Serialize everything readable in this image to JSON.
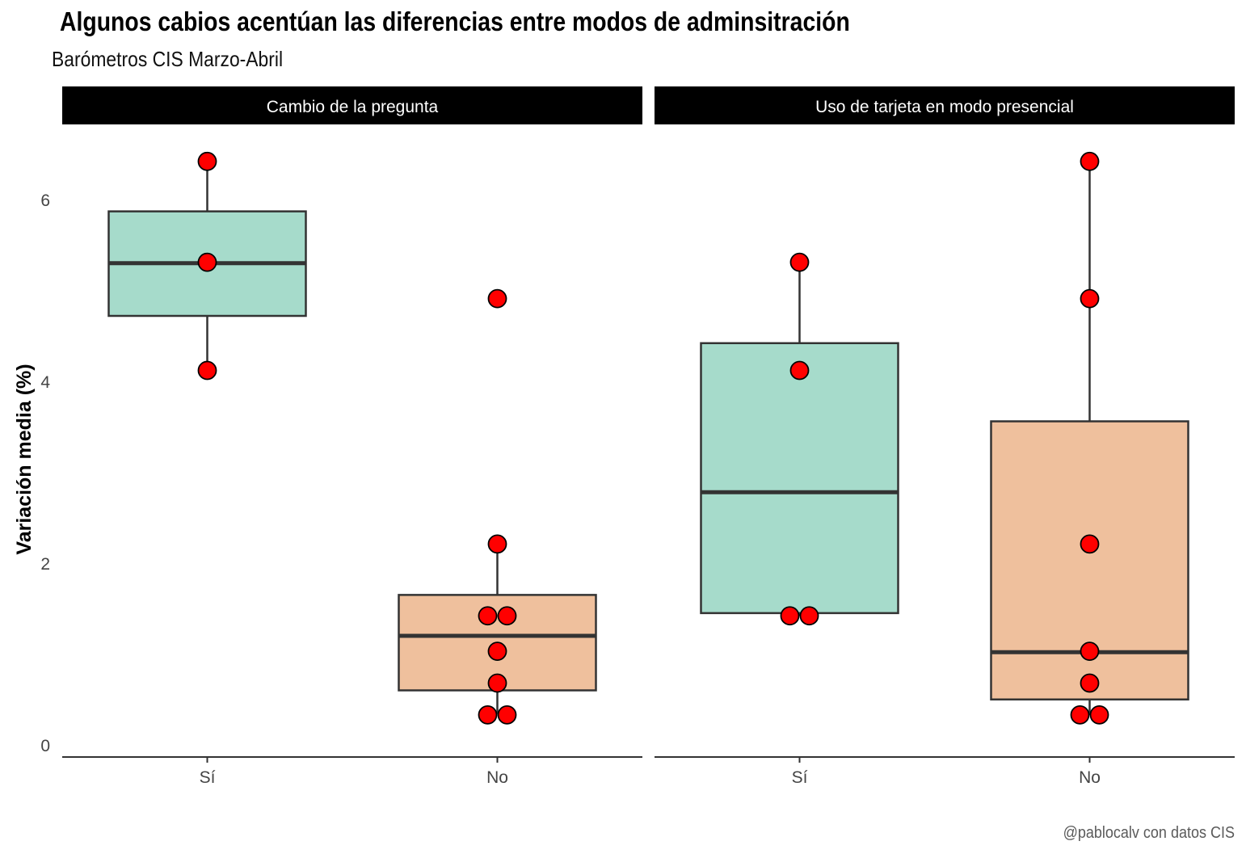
{
  "title": "Algunos cabios acentúan las diferencias entre modos de adminsitración",
  "subtitle": "Barómetros CIS Marzo-Abril",
  "caption": "@pablocalv con datos CIS",
  "colors": {
    "si_fill": "#a6dbcb",
    "no_fill": "#efc09d",
    "point": "#ff0000",
    "strip": "#000000",
    "box_line": "#333333"
  },
  "chart_data": {
    "type": "box",
    "ylabel": "Variación media (%)",
    "xlabel": "",
    "ylim": [
      0,
      6.6
    ],
    "yticks": [
      0,
      2,
      4,
      6
    ],
    "categories": [
      "Sí",
      "No"
    ],
    "grid": false,
    "panels": [
      {
        "name": "Cambio de la pregunta",
        "groups": [
          {
            "category": "Sí",
            "q1": 4.72,
            "median": 5.3,
            "q3": 5.87,
            "whisker_low": 4.12,
            "whisker_high": 6.42,
            "points": [
              {
                "y": 6.42,
                "dx": 0
              },
              {
                "y": 5.31,
                "dx": 0
              },
              {
                "y": 4.12,
                "dx": 0
              }
            ]
          },
          {
            "category": "No",
            "q1": 0.6,
            "median": 1.2,
            "q3": 1.65,
            "whisker_low": 0.34,
            "whisker_high": 2.21,
            "points": [
              {
                "y": 4.91,
                "dx": 0
              },
              {
                "y": 2.21,
                "dx": 0
              },
              {
                "y": 1.42,
                "dx": -0.5
              },
              {
                "y": 1.42,
                "dx": 0.5
              },
              {
                "y": 1.03,
                "dx": 0
              },
              {
                "y": 0.68,
                "dx": 0
              },
              {
                "y": 0.33,
                "dx": -0.5
              },
              {
                "y": 0.33,
                "dx": 0.5
              }
            ]
          }
        ]
      },
      {
        "name": "Uso de tarjeta en modo presencial",
        "groups": [
          {
            "category": "Sí",
            "q1": 1.45,
            "median": 2.78,
            "q3": 4.42,
            "whisker_low": 1.42,
            "whisker_high": 5.31,
            "points": [
              {
                "y": 5.31,
                "dx": 0
              },
              {
                "y": 4.12,
                "dx": 0
              },
              {
                "y": 1.42,
                "dx": -0.5
              },
              {
                "y": 1.42,
                "dx": 0.5
              }
            ]
          },
          {
            "category": "No",
            "q1": 0.5,
            "median": 1.02,
            "q3": 3.56,
            "whisker_low": 0.33,
            "whisker_high": 6.42,
            "points": [
              {
                "y": 6.42,
                "dx": 0
              },
              {
                "y": 4.91,
                "dx": 0
              },
              {
                "y": 2.21,
                "dx": 0
              },
              {
                "y": 1.03,
                "dx": 0
              },
              {
                "y": 0.68,
                "dx": 0
              },
              {
                "y": 0.33,
                "dx": -0.5
              },
              {
                "y": 0.33,
                "dx": 0.5
              }
            ]
          }
        ]
      }
    ]
  }
}
